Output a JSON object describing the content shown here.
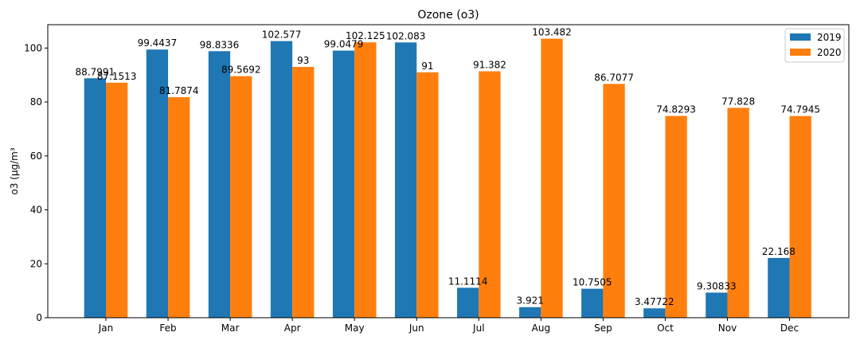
{
  "chart_data": {
    "type": "bar",
    "title": "Ozone (o3)",
    "xlabel": "",
    "ylabel": "o3 (µg/m³",
    "categories": [
      "Jan",
      "Feb",
      "Mar",
      "Apr",
      "May",
      "Jun",
      "Jul",
      "Aug",
      "Sep",
      "Oct",
      "Nov",
      "Dec"
    ],
    "series": [
      {
        "name": "2019",
        "color": "#1f77b4",
        "values": [
          88.7991,
          99.4437,
          98.8336,
          102.577,
          99.0479,
          102.083,
          11.1114,
          3.921,
          10.7505,
          3.47722,
          9.30833,
          22.168
        ],
        "labels": [
          "88.7991",
          "99.4437",
          "98.8336",
          "102.577",
          "99.0479",
          "102.083",
          "11.1114",
          "3.921",
          "10.7505",
          "3.47722",
          "9.30833",
          "22.168"
        ]
      },
      {
        "name": "2020",
        "color": "#ff7f0e",
        "values": [
          87.1513,
          81.7874,
          89.5692,
          93,
          102.125,
          91,
          91.382,
          103.482,
          86.7077,
          74.8293,
          77.828,
          74.7945
        ],
        "labels": [
          "87.1513",
          "81.7874",
          "89.5692",
          "93",
          "102.125",
          "91",
          "91.382",
          "103.482",
          "86.7077",
          "74.8293",
          "77.828",
          "74.7945"
        ]
      }
    ],
    "ylim": [
      0,
      108.66
    ],
    "yticks": [
      0,
      20,
      40,
      60,
      80,
      100
    ],
    "ytick_labels": [
      "0",
      "20",
      "40",
      "60",
      "80",
      "100"
    ],
    "grid": false,
    "legend_position": "top-right"
  }
}
